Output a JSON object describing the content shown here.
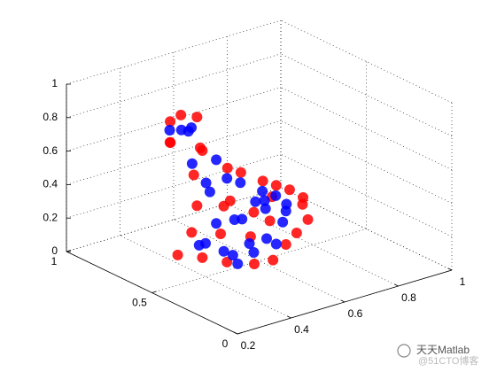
{
  "chart_data": {
    "type": "scatter3d",
    "xlim": [
      0.2,
      1
    ],
    "xticks": [
      0.2,
      0.4,
      0.6,
      0.8,
      1
    ],
    "ylim": [
      0,
      1
    ],
    "yticks": [
      0,
      0.5,
      1
    ],
    "zlim": [
      0,
      1
    ],
    "zticks": [
      0,
      0.2,
      0.4,
      0.6,
      0.8,
      1
    ],
    "grid": true,
    "series": [
      {
        "color": "#ff0000",
        "x": [
          0.3,
          0.34,
          0.4,
          0.28,
          0.32,
          0.38,
          0.42,
          0.45,
          0.5,
          0.55,
          0.6,
          0.65,
          0.7,
          0.73,
          0.75,
          0.74,
          0.7,
          0.62,
          0.55,
          0.48,
          0.42,
          0.36,
          0.38,
          0.4,
          0.42,
          0.5,
          0.58,
          0.64,
          0.52,
          0.6,
          0.46,
          0.68
        ],
        "y": [
          0.55,
          0.55,
          0.55,
          0.52,
          0.58,
          0.5,
          0.55,
          0.45,
          0.45,
          0.4,
          0.4,
          0.4,
          0.4,
          0.45,
          0.45,
          0.5,
          0.5,
          0.45,
          0.45,
          0.5,
          0.55,
          0.6,
          0.55,
          0.55,
          0.6,
          0.55,
          0.5,
          0.5,
          0.6,
          0.55,
          0.45,
          0.55
        ],
        "z": [
          0.95,
          0.97,
          0.93,
          0.85,
          0.8,
          0.78,
          0.72,
          0.65,
          0.6,
          0.55,
          0.5,
          0.45,
          0.38,
          0.3,
          0.2,
          0.1,
          0.05,
          0.02,
          0.03,
          0.05,
          0.08,
          0.1,
          0.25,
          0.4,
          0.55,
          0.35,
          0.3,
          0.22,
          0.15,
          0.12,
          0.45,
          0.32
        ]
      },
      {
        "color": "#0000ff",
        "x": [
          0.31,
          0.36,
          0.33,
          0.4,
          0.44,
          0.48,
          0.53,
          0.58,
          0.63,
          0.67,
          0.7,
          0.72,
          0.66,
          0.58,
          0.5,
          0.44,
          0.4,
          0.44,
          0.48,
          0.54,
          0.6,
          0.62,
          0.56,
          0.5,
          0.47,
          0.37,
          0.35,
          0.65,
          0.52,
          0.6
        ],
        "y": [
          0.5,
          0.52,
          0.6,
          0.6,
          0.5,
          0.5,
          0.5,
          0.45,
          0.45,
          0.45,
          0.5,
          0.55,
          0.55,
          0.5,
          0.55,
          0.6,
          0.5,
          0.5,
          0.6,
          0.55,
          0.6,
          0.5,
          0.4,
          0.4,
          0.45,
          0.45,
          0.5,
          0.6,
          0.5,
          0.4
        ],
        "z": [
          0.92,
          0.9,
          0.86,
          0.82,
          0.68,
          0.55,
          0.5,
          0.45,
          0.4,
          0.33,
          0.25,
          0.15,
          0.08,
          0.06,
          0.08,
          0.12,
          0.2,
          0.3,
          0.42,
          0.25,
          0.2,
          0.35,
          0.38,
          0.2,
          0.12,
          0.6,
          0.7,
          0.28,
          0.02,
          0.15
        ]
      }
    ]
  },
  "watermark": {
    "text": "天天Matlab",
    "source": "@51CTO博客"
  }
}
